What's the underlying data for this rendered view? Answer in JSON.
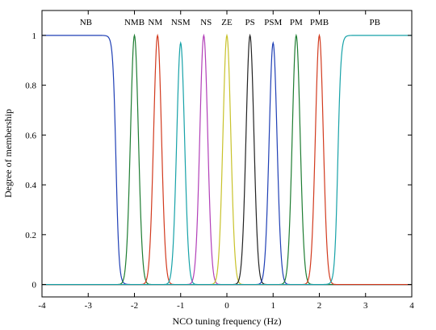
{
  "chart_data": {
    "type": "line",
    "xlabel": "NCO tuning frequency (Hz)",
    "ylabel": "Degree of membership",
    "xlim": [
      -4,
      4
    ],
    "ylim": [
      -0.05,
      1.1
    ],
    "x_ticks": [
      "-4",
      "-3",
      "-2",
      "-1",
      "0",
      "1",
      "2",
      "3",
      "4"
    ],
    "y_ticks": [
      "0",
      "0.2",
      "0.4",
      "0.6",
      "0.8",
      "1"
    ],
    "grid": false,
    "series": [
      {
        "name": "NB",
        "shape": "z-sigmoid",
        "center": -2.4,
        "color": "#1f3fb5",
        "peak": 1.0
      },
      {
        "name": "NMB",
        "shape": "bell",
        "center": -2.0,
        "color": "#1e7d32",
        "peak": 1.0
      },
      {
        "name": "NM",
        "shape": "bell",
        "center": -1.5,
        "color": "#d23a1e",
        "peak": 1.0
      },
      {
        "name": "NSM",
        "shape": "bell",
        "center": -1.0,
        "color": "#17a2a8",
        "peak": 0.97
      },
      {
        "name": "NS",
        "shape": "bell",
        "center": -0.5,
        "color": "#b23fb8",
        "peak": 1.0
      },
      {
        "name": "ZE",
        "shape": "bell",
        "center": 0.0,
        "color": "#c8c22a",
        "peak": 1.0
      },
      {
        "name": "PS",
        "shape": "bell",
        "center": 0.5,
        "color": "#222222",
        "peak": 1.0
      },
      {
        "name": "PSM",
        "shape": "bell",
        "center": 1.0,
        "color": "#1f3fb5",
        "peak": 0.97
      },
      {
        "name": "PM",
        "shape": "bell",
        "center": 1.5,
        "color": "#1e7d32",
        "peak": 1.0
      },
      {
        "name": "PMB",
        "shape": "bell",
        "center": 2.0,
        "color": "#d23a1e",
        "peak": 1.0
      },
      {
        "name": "PB",
        "shape": "s-sigmoid",
        "center": 2.4,
        "color": "#17a2a8",
        "peak": 1.0
      }
    ],
    "series_labels": [
      {
        "text": "NB",
        "x": -3.05
      },
      {
        "text": "NMB",
        "x": -2.0
      },
      {
        "text": "NM",
        "x": -1.55
      },
      {
        "text": "NSM",
        "x": -1.0
      },
      {
        "text": "NS",
        "x": -0.45
      },
      {
        "text": "ZE",
        "x": 0.0
      },
      {
        "text": "PS",
        "x": 0.5
      },
      {
        "text": "PSM",
        "x": 1.0
      },
      {
        "text": "PM",
        "x": 1.5
      },
      {
        "text": "PMB",
        "x": 2.0
      },
      {
        "text": "PB",
        "x": 3.2
      }
    ]
  }
}
